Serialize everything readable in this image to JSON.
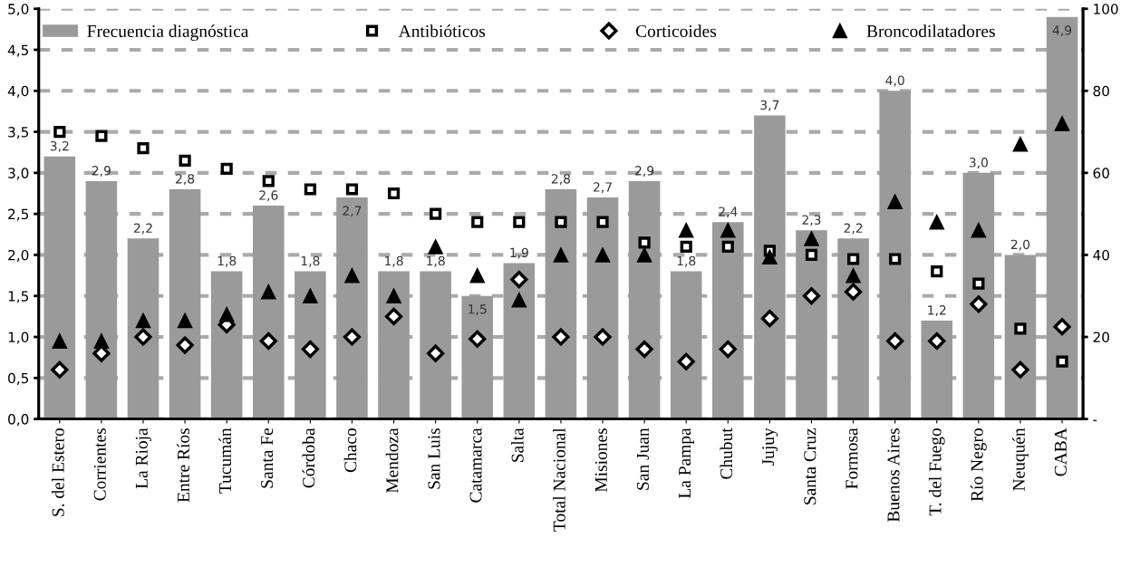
{
  "chart_data": {
    "type": "bar",
    "categories": [
      "S. del Estero",
      "Corrientes",
      "La Rioja",
      "Entre Ríos",
      "Tucumán",
      "Santa Fe",
      "Córdoba",
      "Chaco",
      "Mendoza",
      "San Luis",
      "Catamarca",
      "Salta",
      "Total Nacional",
      "Misiones",
      "San Juan",
      "La Pampa",
      "Chubut",
      "Jujuy",
      "Santa Cruz",
      "Formosa",
      "Buenos Aires",
      "T. del Fuego",
      "Río Negro",
      "Neuquén",
      "CABA"
    ],
    "series": [
      {
        "name": "Frecuencia diagnóstica",
        "color": "#9a9a9a",
        "values": [
          3.2,
          2.9,
          2.2,
          2.8,
          1.8,
          2.6,
          1.8,
          2.7,
          1.8,
          1.8,
          1.5,
          1.9,
          2.8,
          2.7,
          2.9,
          1.8,
          2.4,
          3.7,
          2.3,
          2.2,
          4.0,
          1.2,
          3.0,
          2.0,
          4.9
        ],
        "value_labels": [
          "3,2",
          "2,9",
          "2,2",
          "2,8",
          "1,8",
          "2,6",
          "1,8",
          "2,7",
          "1,8",
          "1,8",
          "1,5",
          "1,9",
          "2,8",
          "2,7",
          "2,9",
          "1,8",
          "2,4",
          "3,7",
          "2,3",
          "2,2",
          "4,0",
          "1,2",
          "3,0",
          "2,0",
          "4,9"
        ]
      },
      {
        "name": "Antibióticos",
        "type": "scatter",
        "axis": "y2",
        "marker": "square",
        "color": "#000000",
        "values": [
          70,
          69,
          66,
          63,
          61,
          58,
          56,
          56,
          55,
          50,
          48,
          48,
          48,
          48,
          43,
          42,
          42,
          41,
          40,
          39,
          39,
          36,
          33,
          22,
          14
        ]
      },
      {
        "name": "Corticoides",
        "type": "scatter",
        "axis": "y2",
        "marker": "diamond",
        "color": "#000000",
        "values": [
          12,
          16,
          20,
          18,
          23,
          19,
          17,
          20,
          25,
          16,
          19.5,
          34,
          20,
          20,
          17,
          14,
          17,
          24.5,
          30,
          31,
          19,
          19,
          28,
          12,
          22.5
        ]
      },
      {
        "name": "Broncodilatadores",
        "type": "scatter",
        "axis": "y2",
        "marker": "triangle",
        "color": "#000000",
        "values": [
          19,
          19,
          24,
          24,
          25.5,
          31,
          30,
          35,
          30,
          42,
          35,
          29,
          40,
          40,
          40,
          46,
          46,
          39.5,
          44,
          35,
          53,
          48,
          46,
          67,
          72
        ]
      }
    ],
    "ylim": [
      0,
      5
    ],
    "yticks": [
      {
        "value": 0,
        "label": "0,0"
      },
      {
        "value": 0.5,
        "label": "0,5"
      },
      {
        "value": 1,
        "label": "1,0"
      },
      {
        "value": 1.5,
        "label": "1,5"
      },
      {
        "value": 2,
        "label": "2,0"
      },
      {
        "value": 2.5,
        "label": "2,5"
      },
      {
        "value": 3,
        "label": "3,0"
      },
      {
        "value": 3.5,
        "label": "3,5"
      },
      {
        "value": 4,
        "label": "4,0"
      },
      {
        "value": 4.5,
        "label": "4,5"
      },
      {
        "value": 5,
        "label": "5,0"
      }
    ],
    "y2lim": [
      0,
      100
    ],
    "y2ticks": [
      {
        "value": 0,
        "label": "-"
      },
      20,
      40,
      60,
      80,
      100
    ],
    "grid": "y",
    "legend": "top"
  }
}
